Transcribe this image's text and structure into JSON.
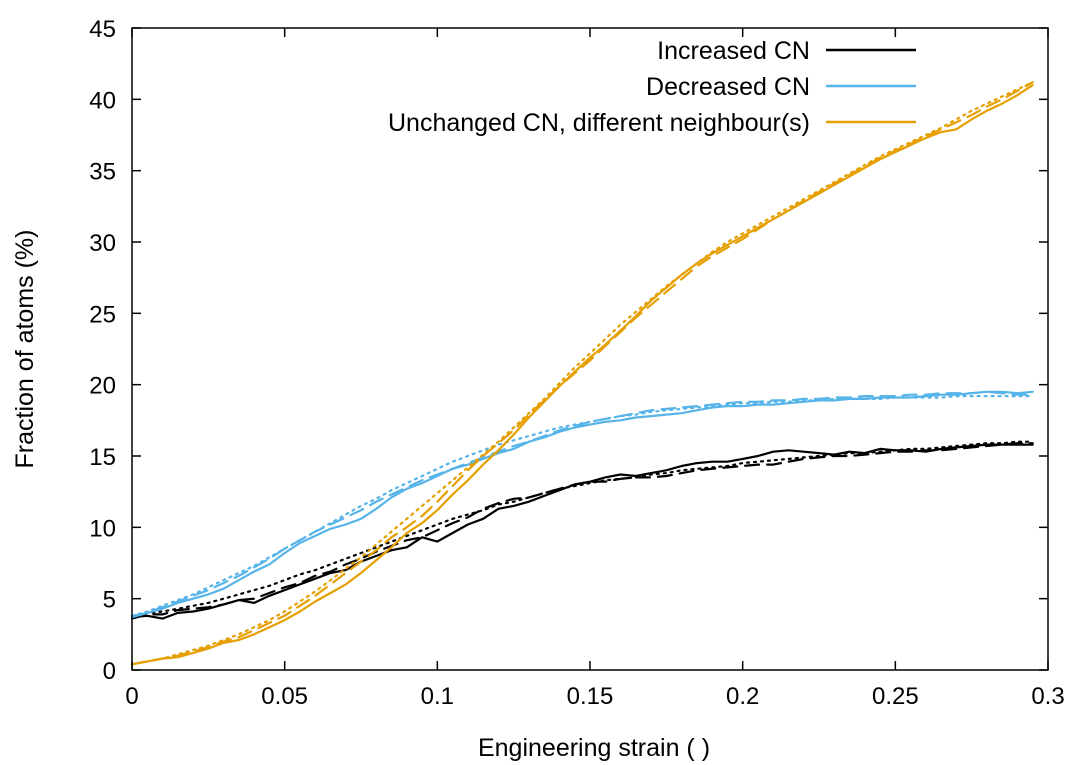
{
  "chart_data": {
    "type": "line",
    "title": "",
    "xlabel": "Engineering strain ( )",
    "ylabel": "Fraction of atoms (%)",
    "xlim": [
      0,
      0.3
    ],
    "ylim": [
      0,
      45
    ],
    "xticks": [
      0,
      0.05,
      0.1,
      0.15,
      0.2,
      0.25,
      0.3
    ],
    "xtick_labels": [
      "0",
      "0.05",
      "0.1",
      "0.15",
      "0.2",
      "0.25",
      "0.3"
    ],
    "yticks": [
      0,
      5,
      10,
      15,
      20,
      25,
      30,
      35,
      40,
      45
    ],
    "ytick_labels": [
      "0",
      "5",
      "10",
      "15",
      "20",
      "25",
      "30",
      "35",
      "40",
      "45"
    ],
    "grid": false,
    "legend_position": "top-right",
    "line_styles": [
      "solid",
      "dashed",
      "dotted"
    ],
    "series": [
      {
        "name": "Increased CN",
        "color": "#000000",
        "in_legend": true,
        "style": "solid",
        "x": [
          0,
          0.005,
          0.01,
          0.015,
          0.02,
          0.025,
          0.03,
          0.035,
          0.04,
          0.045,
          0.05,
          0.055,
          0.06,
          0.065,
          0.07,
          0.075,
          0.08,
          0.085,
          0.09,
          0.095,
          0.1,
          0.105,
          0.11,
          0.115,
          0.12,
          0.125,
          0.13,
          0.135,
          0.14,
          0.145,
          0.15,
          0.155,
          0.16,
          0.165,
          0.17,
          0.175,
          0.18,
          0.185,
          0.19,
          0.195,
          0.2,
          0.205,
          0.21,
          0.215,
          0.22,
          0.225,
          0.23,
          0.235,
          0.24,
          0.245,
          0.25,
          0.255,
          0.26,
          0.265,
          0.27,
          0.275,
          0.28,
          0.285,
          0.29,
          0.295
        ],
        "y": [
          3.7,
          3.8,
          3.6,
          4.0,
          4.1,
          4.3,
          4.6,
          4.9,
          4.7,
          5.2,
          5.6,
          6.0,
          6.4,
          6.8,
          7.0,
          7.6,
          8.0,
          8.4,
          8.6,
          9.3,
          9.0,
          9.6,
          10.2,
          10.6,
          11.3,
          11.5,
          11.8,
          12.2,
          12.6,
          13.0,
          13.2,
          13.5,
          13.7,
          13.6,
          13.8,
          14.0,
          14.3,
          14.5,
          14.6,
          14.6,
          14.8,
          15.0,
          15.3,
          15.4,
          15.3,
          15.2,
          15.1,
          15.3,
          15.2,
          15.5,
          15.4,
          15.4,
          15.3,
          15.5,
          15.6,
          15.7,
          15.8,
          15.8,
          15.8,
          15.8
        ]
      },
      {
        "name": "",
        "color": "#000000",
        "in_legend": false,
        "style": "dashed",
        "x": [
          0,
          0.005,
          0.01,
          0.015,
          0.02,
          0.025,
          0.03,
          0.035,
          0.04,
          0.045,
          0.05,
          0.055,
          0.06,
          0.065,
          0.07,
          0.075,
          0.08,
          0.085,
          0.09,
          0.095,
          0.1,
          0.105,
          0.11,
          0.115,
          0.12,
          0.125,
          0.13,
          0.135,
          0.14,
          0.145,
          0.15,
          0.155,
          0.16,
          0.165,
          0.17,
          0.175,
          0.18,
          0.185,
          0.19,
          0.195,
          0.2,
          0.205,
          0.21,
          0.215,
          0.22,
          0.225,
          0.23,
          0.235,
          0.24,
          0.245,
          0.25,
          0.255,
          0.26,
          0.265,
          0.27,
          0.275,
          0.28,
          0.285,
          0.29,
          0.295
        ],
        "y": [
          3.6,
          3.9,
          3.9,
          4.2,
          4.3,
          4.4,
          4.6,
          4.9,
          5.0,
          5.4,
          5.8,
          6.1,
          6.6,
          6.9,
          7.4,
          7.8,
          8.3,
          8.7,
          9.1,
          9.3,
          9.8,
          10.3,
          10.7,
          11.3,
          11.7,
          12.0,
          12.1,
          12.4,
          12.7,
          13.0,
          13.2,
          13.2,
          13.4,
          13.5,
          13.5,
          13.6,
          13.8,
          14.0,
          14.1,
          14.2,
          14.3,
          14.4,
          14.4,
          14.6,
          14.8,
          14.9,
          15.0,
          15.0,
          15.1,
          15.2,
          15.3,
          15.3,
          15.4,
          15.4,
          15.5,
          15.6,
          15.7,
          15.8,
          15.9,
          15.9
        ]
      },
      {
        "name": "",
        "color": "#000000",
        "in_legend": false,
        "style": "dotted",
        "x": [
          0,
          0.005,
          0.01,
          0.015,
          0.02,
          0.025,
          0.03,
          0.035,
          0.04,
          0.045,
          0.05,
          0.055,
          0.06,
          0.065,
          0.07,
          0.075,
          0.08,
          0.085,
          0.09,
          0.095,
          0.1,
          0.105,
          0.11,
          0.115,
          0.12,
          0.125,
          0.13,
          0.135,
          0.14,
          0.145,
          0.15,
          0.155,
          0.16,
          0.165,
          0.17,
          0.175,
          0.18,
          0.185,
          0.19,
          0.195,
          0.2,
          0.205,
          0.21,
          0.215,
          0.22,
          0.225,
          0.23,
          0.235,
          0.24,
          0.245,
          0.25,
          0.255,
          0.26,
          0.265,
          0.27,
          0.275,
          0.28,
          0.285,
          0.29,
          0.295
        ],
        "y": [
          3.7,
          4.0,
          4.1,
          4.3,
          4.5,
          4.7,
          5.0,
          5.3,
          5.6,
          5.9,
          6.3,
          6.7,
          7.0,
          7.4,
          7.8,
          8.2,
          8.6,
          9.0,
          9.4,
          9.8,
          10.2,
          10.6,
          10.9,
          11.2,
          11.6,
          11.8,
          12.1,
          12.4,
          12.7,
          12.9,
          13.1,
          13.3,
          13.4,
          13.5,
          13.7,
          13.8,
          14.0,
          14.1,
          14.2,
          14.3,
          14.5,
          14.6,
          14.7,
          14.8,
          14.9,
          15.0,
          15.1,
          15.2,
          15.2,
          15.3,
          15.4,
          15.5,
          15.5,
          15.6,
          15.7,
          15.8,
          15.9,
          15.9,
          16.0,
          16.0
        ]
      },
      {
        "name": "Decreased CN",
        "color": "#56b4e9",
        "in_legend": true,
        "style": "solid",
        "x": [
          0,
          0.005,
          0.01,
          0.015,
          0.02,
          0.025,
          0.03,
          0.035,
          0.04,
          0.045,
          0.05,
          0.055,
          0.06,
          0.065,
          0.07,
          0.075,
          0.08,
          0.085,
          0.09,
          0.095,
          0.1,
          0.105,
          0.11,
          0.115,
          0.12,
          0.125,
          0.13,
          0.135,
          0.14,
          0.145,
          0.15,
          0.155,
          0.16,
          0.165,
          0.17,
          0.175,
          0.18,
          0.185,
          0.19,
          0.195,
          0.2,
          0.205,
          0.21,
          0.215,
          0.22,
          0.225,
          0.23,
          0.235,
          0.24,
          0.245,
          0.25,
          0.255,
          0.26,
          0.265,
          0.27,
          0.275,
          0.28,
          0.285,
          0.29,
          0.295
        ],
        "y": [
          3.8,
          4.0,
          4.3,
          4.7,
          5.0,
          5.3,
          5.7,
          6.3,
          6.9,
          7.4,
          8.2,
          8.9,
          9.4,
          9.9,
          10.2,
          10.6,
          11.3,
          12.1,
          12.7,
          13.1,
          13.6,
          14.1,
          14.4,
          14.8,
          15.2,
          15.5,
          16.0,
          16.3,
          16.7,
          17.0,
          17.2,
          17.4,
          17.5,
          17.7,
          17.8,
          17.9,
          18.0,
          18.2,
          18.4,
          18.5,
          18.5,
          18.6,
          18.6,
          18.7,
          18.8,
          18.9,
          18.9,
          19.0,
          19.0,
          19.1,
          19.1,
          19.1,
          19.2,
          19.3,
          19.3,
          19.4,
          19.5,
          19.5,
          19.4,
          19.5
        ]
      },
      {
        "name": "",
        "color": "#56b4e9",
        "in_legend": false,
        "style": "dashed",
        "x": [
          0,
          0.005,
          0.01,
          0.015,
          0.02,
          0.025,
          0.03,
          0.035,
          0.04,
          0.045,
          0.05,
          0.055,
          0.06,
          0.065,
          0.07,
          0.075,
          0.08,
          0.085,
          0.09,
          0.095,
          0.1,
          0.105,
          0.11,
          0.115,
          0.12,
          0.125,
          0.13,
          0.135,
          0.14,
          0.145,
          0.15,
          0.155,
          0.16,
          0.165,
          0.17,
          0.175,
          0.18,
          0.185,
          0.19,
          0.195,
          0.2,
          0.205,
          0.21,
          0.215,
          0.22,
          0.225,
          0.23,
          0.235,
          0.24,
          0.245,
          0.25,
          0.255,
          0.26,
          0.265,
          0.27,
          0.275,
          0.28,
          0.285,
          0.29,
          0.295
        ],
        "y": [
          3.7,
          4.0,
          4.4,
          4.8,
          5.2,
          5.6,
          6.1,
          6.6,
          7.2,
          7.8,
          8.5,
          9.1,
          9.7,
          10.2,
          10.7,
          11.2,
          11.8,
          12.3,
          12.8,
          13.3,
          13.7,
          14.1,
          14.5,
          14.9,
          15.3,
          15.7,
          16.0,
          16.4,
          16.8,
          17.1,
          17.4,
          17.6,
          17.8,
          18.0,
          18.2,
          18.3,
          18.4,
          18.5,
          18.6,
          18.7,
          18.8,
          18.8,
          18.9,
          18.9,
          19.0,
          19.0,
          19.1,
          19.1,
          19.2,
          19.2,
          19.2,
          19.3,
          19.3,
          19.4,
          19.4,
          19.4,
          19.5,
          19.4,
          19.3,
          19.3
        ]
      },
      {
        "name": "",
        "color": "#56b4e9",
        "in_legend": false,
        "style": "dotted",
        "x": [
          0,
          0.005,
          0.01,
          0.015,
          0.02,
          0.025,
          0.03,
          0.035,
          0.04,
          0.045,
          0.05,
          0.055,
          0.06,
          0.065,
          0.07,
          0.075,
          0.08,
          0.085,
          0.09,
          0.095,
          0.1,
          0.105,
          0.11,
          0.115,
          0.12,
          0.125,
          0.13,
          0.135,
          0.14,
          0.145,
          0.15,
          0.155,
          0.16,
          0.165,
          0.17,
          0.175,
          0.18,
          0.185,
          0.19,
          0.195,
          0.2,
          0.205,
          0.21,
          0.215,
          0.22,
          0.225,
          0.23,
          0.235,
          0.24,
          0.245,
          0.25,
          0.255,
          0.26,
          0.265,
          0.27,
          0.275,
          0.28,
          0.285,
          0.29,
          0.295
        ],
        "y": [
          3.8,
          4.1,
          4.5,
          4.9,
          5.3,
          5.8,
          6.3,
          6.8,
          7.3,
          7.9,
          8.5,
          9.1,
          9.7,
          10.3,
          10.9,
          11.5,
          12.0,
          12.6,
          13.1,
          13.6,
          14.1,
          14.6,
          15.0,
          15.4,
          15.8,
          16.1,
          16.4,
          16.7,
          17.0,
          17.2,
          17.4,
          17.6,
          17.8,
          17.9,
          18.1,
          18.2,
          18.3,
          18.4,
          18.5,
          18.6,
          18.7,
          18.7,
          18.8,
          18.8,
          18.9,
          18.9,
          19.0,
          19.0,
          19.0,
          19.0,
          19.1,
          19.1,
          19.1,
          19.1,
          19.2,
          19.2,
          19.2,
          19.2,
          19.2,
          19.2
        ]
      },
      {
        "name": "Unchanged CN, different neighbour(s)",
        "color": "#e69f00",
        "in_legend": true,
        "style": "solid",
        "x": [
          0,
          0.005,
          0.01,
          0.015,
          0.02,
          0.025,
          0.03,
          0.035,
          0.04,
          0.045,
          0.05,
          0.055,
          0.06,
          0.065,
          0.07,
          0.075,
          0.08,
          0.085,
          0.09,
          0.095,
          0.1,
          0.105,
          0.11,
          0.115,
          0.12,
          0.125,
          0.13,
          0.135,
          0.14,
          0.145,
          0.15,
          0.155,
          0.16,
          0.165,
          0.17,
          0.175,
          0.18,
          0.185,
          0.19,
          0.195,
          0.2,
          0.205,
          0.21,
          0.215,
          0.22,
          0.225,
          0.23,
          0.235,
          0.24,
          0.245,
          0.25,
          0.255,
          0.26,
          0.265,
          0.27,
          0.275,
          0.28,
          0.285,
          0.29,
          0.295
        ],
        "y": [
          0.4,
          0.6,
          0.8,
          0.9,
          1.2,
          1.5,
          1.9,
          2.1,
          2.5,
          3.0,
          3.5,
          4.1,
          4.8,
          5.4,
          6.0,
          6.8,
          7.7,
          8.6,
          9.6,
          10.3,
          11.2,
          12.3,
          13.3,
          14.4,
          15.4,
          16.5,
          17.7,
          18.8,
          19.9,
          20.9,
          21.9,
          22.8,
          23.8,
          24.8,
          25.9,
          26.8,
          27.7,
          28.5,
          29.2,
          29.8,
          30.4,
          31.0,
          31.6,
          32.2,
          32.8,
          33.4,
          34.0,
          34.6,
          35.2,
          35.8,
          36.3,
          36.8,
          37.3,
          37.7,
          37.9,
          38.6,
          39.2,
          39.7,
          40.3,
          41.0
        ]
      },
      {
        "name": "",
        "color": "#e69f00",
        "in_legend": false,
        "style": "dashed",
        "x": [
          0,
          0.005,
          0.01,
          0.015,
          0.02,
          0.025,
          0.03,
          0.035,
          0.04,
          0.045,
          0.05,
          0.055,
          0.06,
          0.065,
          0.07,
          0.075,
          0.08,
          0.085,
          0.09,
          0.095,
          0.1,
          0.105,
          0.11,
          0.115,
          0.12,
          0.125,
          0.13,
          0.135,
          0.14,
          0.145,
          0.15,
          0.155,
          0.16,
          0.165,
          0.17,
          0.175,
          0.18,
          0.185,
          0.19,
          0.195,
          0.2,
          0.205,
          0.21,
          0.215,
          0.22,
          0.225,
          0.23,
          0.235,
          0.24,
          0.245,
          0.25,
          0.255,
          0.26,
          0.265,
          0.27,
          0.275,
          0.28,
          0.285,
          0.29,
          0.295
        ],
        "y": [
          0.4,
          0.6,
          0.8,
          1.0,
          1.3,
          1.6,
          2.0,
          2.3,
          2.8,
          3.3,
          3.8,
          4.5,
          5.2,
          6.0,
          6.8,
          7.6,
          8.4,
          9.3,
          10.0,
          10.8,
          11.8,
          12.9,
          14.0,
          15.0,
          15.9,
          16.8,
          17.9,
          18.9,
          19.9,
          20.8,
          21.7,
          22.7,
          23.7,
          24.7,
          25.6,
          26.5,
          27.4,
          28.3,
          29.0,
          29.6,
          30.2,
          30.9,
          31.6,
          32.2,
          32.9,
          33.5,
          34.1,
          34.7,
          35.3,
          35.9,
          36.4,
          36.9,
          37.4,
          37.9,
          38.4,
          38.9,
          39.5,
          40.0,
          40.6,
          41.2
        ]
      },
      {
        "name": "",
        "color": "#e69f00",
        "in_legend": false,
        "style": "dotted",
        "x": [
          0,
          0.005,
          0.01,
          0.015,
          0.02,
          0.025,
          0.03,
          0.035,
          0.04,
          0.045,
          0.05,
          0.055,
          0.06,
          0.065,
          0.07,
          0.075,
          0.08,
          0.085,
          0.09,
          0.095,
          0.1,
          0.105,
          0.11,
          0.115,
          0.12,
          0.125,
          0.13,
          0.135,
          0.14,
          0.145,
          0.15,
          0.155,
          0.16,
          0.165,
          0.17,
          0.175,
          0.18,
          0.185,
          0.19,
          0.195,
          0.2,
          0.205,
          0.21,
          0.215,
          0.22,
          0.225,
          0.23,
          0.235,
          0.24,
          0.245,
          0.25,
          0.255,
          0.26,
          0.265,
          0.27,
          0.275,
          0.28,
          0.285,
          0.29,
          0.295
        ],
        "y": [
          0.4,
          0.6,
          0.8,
          1.1,
          1.4,
          1.7,
          2.1,
          2.5,
          3.0,
          3.5,
          4.1,
          4.8,
          5.5,
          6.3,
          7.1,
          7.9,
          8.8,
          9.7,
          10.6,
          11.5,
          12.4,
          13.3,
          14.2,
          15.1,
          16.0,
          17.0,
          18.0,
          19.0,
          20.1,
          21.2,
          22.2,
          23.2,
          24.2,
          25.1,
          26.0,
          26.9,
          27.7,
          28.5,
          29.3,
          30.0,
          30.6,
          31.2,
          31.8,
          32.4,
          33.0,
          33.6,
          34.2,
          34.8,
          35.4,
          36.0,
          36.5,
          37.0,
          37.5,
          38.0,
          38.6,
          39.2,
          39.7,
          40.2,
          40.7,
          41.2
        ]
      }
    ]
  }
}
